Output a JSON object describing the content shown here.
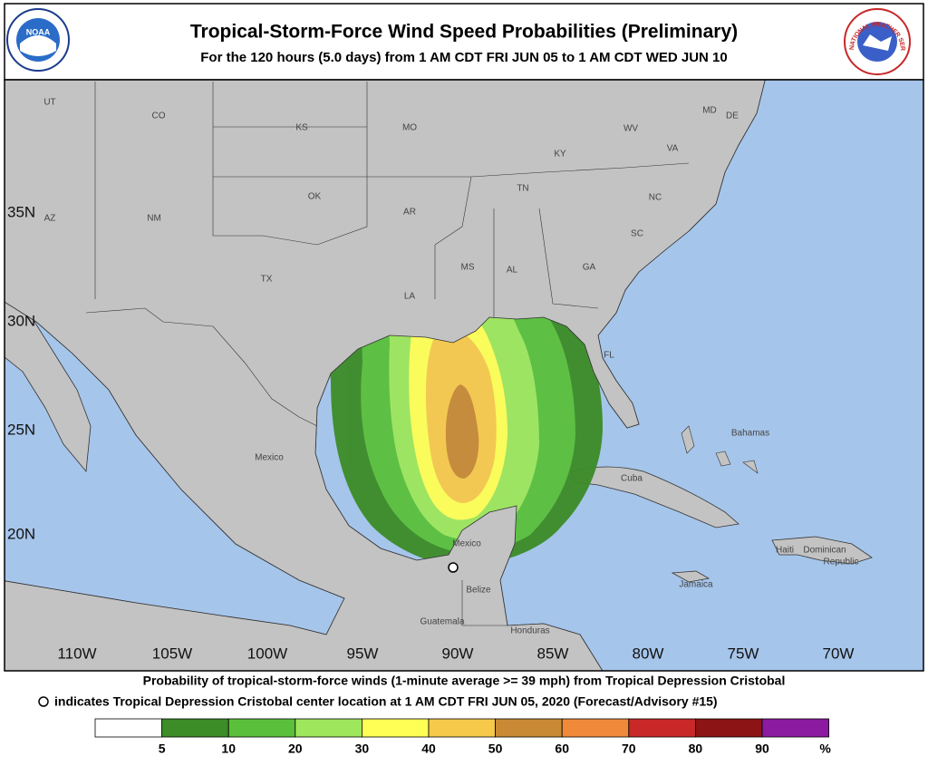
{
  "header": {
    "title": "Tropical-Storm-Force Wind Speed Probabilities (Preliminary)",
    "subtitle": "For the 120 hours (5.0 days) from 1 AM CDT FRI JUN 05 to 1 AM CDT WED JUN 10",
    "logo_left": "NOAA",
    "logo_right": "NATIONAL WEATHER SERVICE"
  },
  "map": {
    "lat_labels": [
      "35N",
      "30N",
      "25N",
      "20N"
    ],
    "lon_labels": [
      "110W",
      "105W",
      "100W",
      "95W",
      "90W",
      "85W",
      "80W",
      "75W",
      "70W"
    ],
    "places": [
      "UT",
      "CO",
      "KS",
      "MO",
      "KY",
      "WV",
      "VA",
      "MD",
      "DE",
      "TN",
      "NC",
      "OK",
      "AR",
      "AZ",
      "NM",
      "SC",
      "GA",
      "MS",
      "AL",
      "TX",
      "LA",
      "FL",
      "Mexico",
      "Bahamas",
      "Cuba",
      "Mexico",
      "Haiti",
      "Dominican",
      "Republic",
      "Jamaica",
      "Belize",
      "Guatemala",
      "Honduras"
    ]
  },
  "footer": {
    "description": "Probability of tropical-storm-force winds (1-minute average >= 39 mph) from Tropical Depression Cristobal",
    "center_note": "indicates Tropical Depression Cristobal center location at 1 AM CDT FRI JUN 05, 2020 (Forecast/Advisory #15)"
  },
  "legend": {
    "ticks": [
      5,
      10,
      20,
      30,
      40,
      50,
      60,
      70,
      80,
      90
    ],
    "unit": "%",
    "colors": [
      "#ffffff",
      "#3c8c28",
      "#5ac03c",
      "#9ee65c",
      "#ffff55",
      "#f7c94a",
      "#c88a34",
      "#f08a3a",
      "#c82828",
      "#8c1414",
      "#8c1aa0"
    ]
  }
}
